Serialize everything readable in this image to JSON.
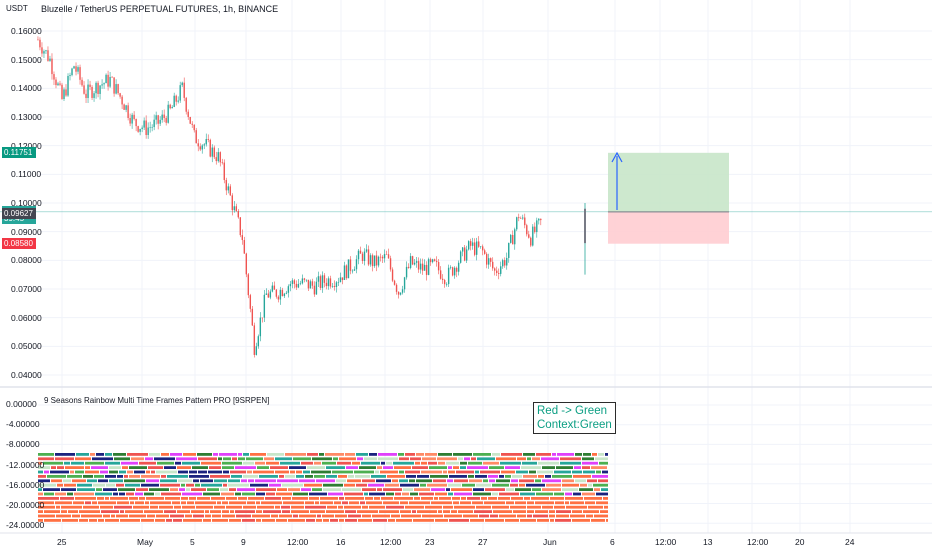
{
  "header": {
    "symbol_title": "Bluzelle / TetherUS PERPETUAL FUTURES, 1h, BINANCE",
    "currency": "USDT"
  },
  "price_axis": {
    "ticks": [
      "0.16000",
      "0.15000",
      "0.14000",
      "0.13000",
      "0.12000",
      "0.11000",
      "0.10000",
      "0.09000",
      "0.08000",
      "0.07000",
      "0.06000",
      "0.05000",
      "0.04000"
    ],
    "badges": [
      {
        "text": "0.11751",
        "color": "#089981",
        "price": 0.11751
      },
      {
        "text": "0.09692",
        "color": "#26a69a",
        "price": 0.09692
      },
      {
        "text": "39:45",
        "color": "#26a69a",
        "price": 0.0945
      },
      {
        "text": "0.09627",
        "color": "#434651",
        "price": 0.09627
      },
      {
        "text": "0.08580",
        "color": "#f23645",
        "price": 0.0858
      }
    ]
  },
  "indicator": {
    "title": "9 Seasons Rainbow Multi Time Frames Pattern PRO [9SRPEN]",
    "ticks": [
      "0.00000",
      "-4.00000",
      "-8.00000",
      "-12.00000",
      "-16.00000",
      "-20.00000",
      "-24.00000"
    ],
    "signal_line1": "Red -> Green",
    "signal_line2": "Context:Green"
  },
  "time_axis": {
    "labels": [
      "25",
      "May",
      "5",
      "9",
      "12:00",
      "16",
      "12:00",
      "23",
      "27",
      "Jun",
      "6",
      "12:00",
      "13",
      "12:00",
      "20",
      "24"
    ]
  },
  "position_tool": {
    "entry": 0.09692,
    "target": 0.11751,
    "stop": 0.0858
  },
  "colors": {
    "up": "#26a69a",
    "down": "#ef5350",
    "profit_zone": "#c8e6c9",
    "loss_zone": "#ffcdd2",
    "arrow": "#2962ff"
  },
  "chart_data": {
    "type": "candlestick",
    "title": "Bluzelle / TetherUS PERPETUAL FUTURES, 1h, BINANCE",
    "ylim": [
      0.04,
      0.16
    ],
    "close_path": [
      {
        "d": "2021-04-23",
        "v": 0.157
      },
      {
        "d": "2021-04-24",
        "v": 0.15
      },
      {
        "d": "2021-04-25",
        "v": 0.136
      },
      {
        "d": "2021-04-26",
        "v": 0.148
      },
      {
        "d": "2021-04-27",
        "v": 0.138
      },
      {
        "d": "2021-04-28",
        "v": 0.141
      },
      {
        "d": "2021-04-29",
        "v": 0.143
      },
      {
        "d": "2021-04-30",
        "v": 0.136
      },
      {
        "d": "2021-05-01",
        "v": 0.128
      },
      {
        "d": "2021-05-02",
        "v": 0.126
      },
      {
        "d": "2021-05-03",
        "v": 0.128
      },
      {
        "d": "2021-05-04",
        "v": 0.132
      },
      {
        "d": "2021-05-05",
        "v": 0.14
      },
      {
        "d": "2021-05-06",
        "v": 0.123
      },
      {
        "d": "2021-05-07",
        "v": 0.12
      },
      {
        "d": "2021-05-08",
        "v": 0.116
      },
      {
        "d": "2021-05-09",
        "v": 0.102
      },
      {
        "d": "2021-05-10",
        "v": 0.088
      },
      {
        "d": "2021-05-11",
        "v": 0.05
      },
      {
        "d": "2021-05-12",
        "v": 0.068
      },
      {
        "d": "2021-05-13",
        "v": 0.069
      },
      {
        "d": "2021-05-14",
        "v": 0.072
      },
      {
        "d": "2021-05-15",
        "v": 0.072
      },
      {
        "d": "2021-05-16",
        "v": 0.071
      },
      {
        "d": "2021-05-17",
        "v": 0.073
      },
      {
        "d": "2021-05-18",
        "v": 0.074
      },
      {
        "d": "2021-05-19",
        "v": 0.078
      },
      {
        "d": "2021-05-20",
        "v": 0.082
      },
      {
        "d": "2021-05-21",
        "v": 0.079
      },
      {
        "d": "2021-05-22",
        "v": 0.081
      },
      {
        "d": "2021-05-23",
        "v": 0.069
      },
      {
        "d": "2021-05-24",
        "v": 0.079
      },
      {
        "d": "2021-05-25",
        "v": 0.077
      },
      {
        "d": "2021-05-26",
        "v": 0.078
      },
      {
        "d": "2021-05-27",
        "v": 0.074
      },
      {
        "d": "2021-05-28",
        "v": 0.08
      },
      {
        "d": "2021-05-29",
        "v": 0.085
      },
      {
        "d": "2021-05-30",
        "v": 0.083
      },
      {
        "d": "2021-05-31",
        "v": 0.076
      },
      {
        "d": "2021-06-01",
        "v": 0.081
      },
      {
        "d": "2021-06-02",
        "v": 0.096
      },
      {
        "d": "2021-06-03",
        "v": 0.088
      },
      {
        "d": "2021-06-04",
        "v": 0.094
      }
    ]
  }
}
